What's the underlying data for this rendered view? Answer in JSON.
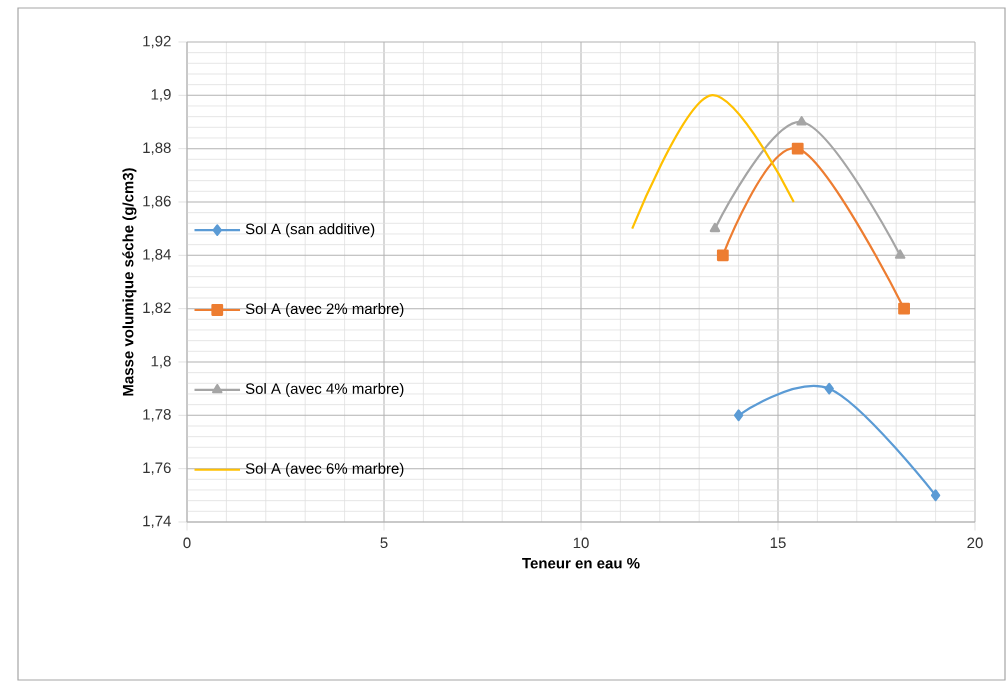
{
  "chart_data": {
    "type": "line",
    "xlabel": "Teneur en eau %",
    "ylabel": "Masse volumique séche (g/cm3)",
    "xlim": [
      0,
      20
    ],
    "xticks": [
      0,
      5,
      10,
      15,
      20
    ],
    "ylim": [
      1.74,
      1.92
    ],
    "yticks": [
      {
        "value": 1.74,
        "label": "1,74"
      },
      {
        "value": 1.76,
        "label": "1,76"
      },
      {
        "value": 1.78,
        "label": "1,78"
      },
      {
        "value": 1.8,
        "label": "1,8"
      },
      {
        "value": 1.82,
        "label": "1,82"
      },
      {
        "value": 1.84,
        "label": "1,84"
      },
      {
        "value": 1.86,
        "label": "1,86"
      },
      {
        "value": 1.88,
        "label": "1,88"
      },
      {
        "value": 1.9,
        "label": "1,9"
      },
      {
        "value": 1.92,
        "label": "1,92"
      }
    ],
    "grid": true,
    "legend": "left",
    "series": [
      {
        "name": "Sol A (san additive)",
        "color": "#5b9bd5",
        "marker": "diamond",
        "x": [
          14,
          16.3,
          19
        ],
        "values": [
          1.78,
          1.79,
          1.75
        ]
      },
      {
        "name": "Sol A (avec 2% marbre)",
        "color": "#ed7d31",
        "marker": "square",
        "x": [
          13.6,
          15.5,
          18.2
        ],
        "values": [
          1.84,
          1.88,
          1.82
        ]
      },
      {
        "name": "Sol A (avec 4% marbre)",
        "color": "#a5a5a5",
        "marker": "triangle",
        "x": [
          13.4,
          15.6,
          18.1
        ],
        "values": [
          1.85,
          1.89,
          1.84
        ]
      },
      {
        "name": "Sol A (avec 6% marbre)",
        "color": "#ffc000",
        "marker": "none",
        "x": [
          11.3,
          13.3,
          15.4
        ],
        "values": [
          1.85,
          1.9,
          1.86
        ]
      }
    ]
  }
}
